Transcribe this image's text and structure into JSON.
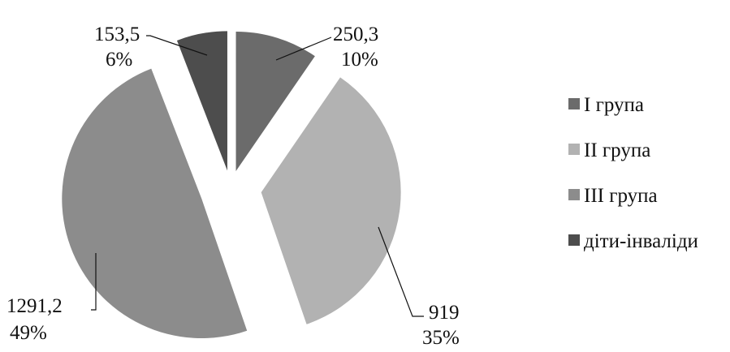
{
  "chart_data": {
    "type": "pie",
    "exploded": true,
    "slices": [
      {
        "label": "І група",
        "value": 250.3,
        "value_text": "250,3",
        "percent": 10,
        "percent_text": "10%",
        "color": "#6b6b6b"
      },
      {
        "label": "ІІ група",
        "value": 919,
        "value_text": "919",
        "percent": 35,
        "percent_text": "35%",
        "color": "#b2b2b2"
      },
      {
        "label": "ІІІ група",
        "value": 1291.2,
        "value_text": "1291,2",
        "percent": 49,
        "percent_text": "49%",
        "color": "#8c8c8c"
      },
      {
        "label": "діти-інваліди",
        "value": 153.5,
        "value_text": "153,5",
        "percent": 6,
        "percent_text": "6%",
        "color": "#4d4d4d"
      }
    ],
    "legend_position": "right"
  }
}
